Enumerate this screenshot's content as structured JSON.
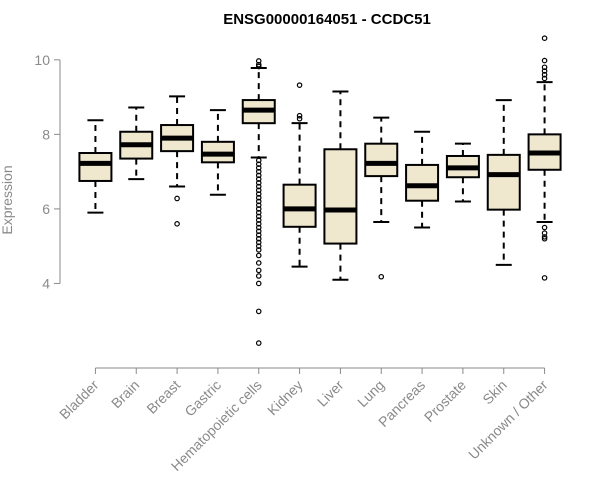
{
  "chart_data": {
    "type": "boxplot",
    "title": "ENSG00000164051 - CCDC51",
    "xlabel": "",
    "ylabel": "Expression",
    "ylim": [
      2.0,
      10.8
    ],
    "yticks": [
      4,
      6,
      8,
      10
    ],
    "grid": false,
    "categories": [
      "Bladder",
      "Brain",
      "Breast",
      "Gastric",
      "Hematopoietic cells",
      "Kidney",
      "Liver",
      "Lung",
      "Pancreas",
      "Prostate",
      "Skin",
      "Unknown / Other"
    ],
    "boxes": [
      {
        "name": "Bladder",
        "min": 5.9,
        "q1": 6.75,
        "median": 7.22,
        "q3": 7.5,
        "max": 8.38,
        "outliers": []
      },
      {
        "name": "Brain",
        "min": 6.8,
        "q1": 7.35,
        "median": 7.72,
        "q3": 8.07,
        "max": 8.72,
        "outliers": []
      },
      {
        "name": "Breast",
        "min": 6.6,
        "q1": 7.55,
        "median": 7.9,
        "q3": 8.25,
        "max": 9.02,
        "outliers": [
          6.28,
          5.6
        ]
      },
      {
        "name": "Gastric",
        "min": 6.38,
        "q1": 7.25,
        "median": 7.47,
        "q3": 7.8,
        "max": 8.65,
        "outliers": []
      },
      {
        "name": "Hematopoietic cells",
        "min": 7.38,
        "q1": 8.3,
        "median": 8.65,
        "q3": 8.92,
        "max": 9.78,
        "outliers": [
          9.97,
          9.87,
          9.82,
          7.3,
          7.2,
          7.1,
          7.0,
          6.9,
          6.8,
          6.7,
          6.6,
          6.5,
          6.4,
          6.3,
          6.2,
          6.1,
          6.0,
          5.9,
          5.8,
          5.7,
          5.6,
          5.5,
          5.4,
          5.3,
          5.2,
          5.1,
          5.0,
          4.9,
          4.75,
          4.55,
          4.35,
          4.2,
          4.0,
          3.25,
          2.4
        ]
      },
      {
        "name": "Kidney",
        "min": 4.45,
        "q1": 5.52,
        "median": 6.0,
        "q3": 6.65,
        "max": 8.3,
        "outliers": [
          9.32,
          8.5,
          8.42
        ]
      },
      {
        "name": "Liver",
        "min": 4.1,
        "q1": 5.07,
        "median": 5.97,
        "q3": 7.6,
        "max": 9.15,
        "outliers": []
      },
      {
        "name": "Lung",
        "min": 5.65,
        "q1": 6.88,
        "median": 7.22,
        "q3": 7.75,
        "max": 8.45,
        "outliers": [
          4.18
        ]
      },
      {
        "name": "Pancreas",
        "min": 5.5,
        "q1": 6.22,
        "median": 6.62,
        "q3": 7.18,
        "max": 8.07,
        "outliers": []
      },
      {
        "name": "Prostate",
        "min": 6.2,
        "q1": 6.85,
        "median": 7.1,
        "q3": 7.42,
        "max": 7.75,
        "outliers": []
      },
      {
        "name": "Skin",
        "min": 4.5,
        "q1": 5.98,
        "median": 6.92,
        "q3": 7.45,
        "max": 8.92,
        "outliers": []
      },
      {
        "name": "Unknown / Other",
        "min": 5.65,
        "q1": 7.05,
        "median": 7.5,
        "q3": 8.0,
        "max": 9.4,
        "outliers": [
          10.58,
          9.98,
          9.8,
          9.7,
          9.6,
          9.5,
          5.5,
          5.35,
          5.25,
          5.2,
          4.15
        ]
      }
    ],
    "colors": {
      "box_fill": "#efe8cf",
      "box_stroke": "#000000",
      "axis": "#8a8a8a"
    }
  }
}
